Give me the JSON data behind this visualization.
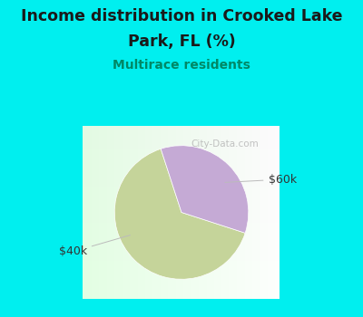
{
  "title_line1": "Income distribution in Crooked Lake",
  "title_line2": "Park, FL (%)",
  "subtitle": "Multirace residents",
  "slices": [
    65.0,
    35.0
  ],
  "labels": [
    "$40k",
    "$60k"
  ],
  "slice_colors": [
    "#c5d49a",
    "#c5aad5"
  ],
  "background_color": "#00efef",
  "title_color": "#1a1a1a",
  "subtitle_color": "#008866",
  "label_color": "#333333",
  "startangle": 108,
  "watermark": "City-Data.com"
}
